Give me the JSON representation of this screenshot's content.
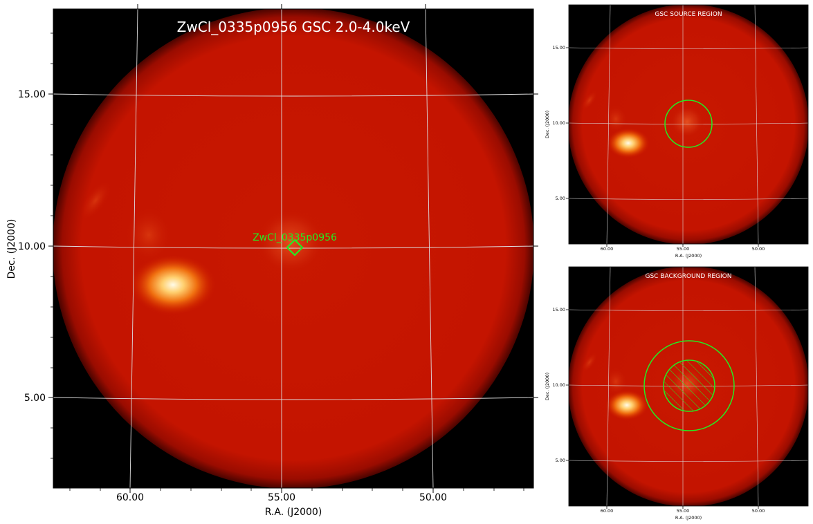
{
  "main_panel": {
    "title": "ZwCl_0335p0956 GSC 2.0-4.0keV",
    "xlabel": "R.A. (J2000)",
    "ylabel": "Dec. (J2000)",
    "x_ticks": [
      "60.00",
      "55.00",
      "50.00"
    ],
    "y_ticks": [
      "15.00",
      "10.00",
      "5.00"
    ],
    "source_marker_label": "ZwCl_0335p0956"
  },
  "source_panel": {
    "title": "GSC SOURCE REGION",
    "xlabel": "R.A. (J2000)",
    "ylabel": "Dec. (J2000)",
    "x_ticks": [
      "60.00",
      "55.00",
      "50.00"
    ],
    "y_ticks": [
      "15.00",
      "10.00",
      "5.00"
    ]
  },
  "background_panel": {
    "title": "GSC BACKGROUND REGION",
    "xlabel": "R.A. (J2000)",
    "ylabel": "Dec. (J2000)",
    "x_ticks": [
      "60.00",
      "55.00",
      "50.00"
    ],
    "y_ticks": [
      "15.00",
      "10.00",
      "5.00"
    ]
  },
  "colors": {
    "background": "#000000",
    "disk": "#c81400",
    "marker": "#22ee22",
    "grid": "#dddddd",
    "title_text": "#ffffff"
  }
}
